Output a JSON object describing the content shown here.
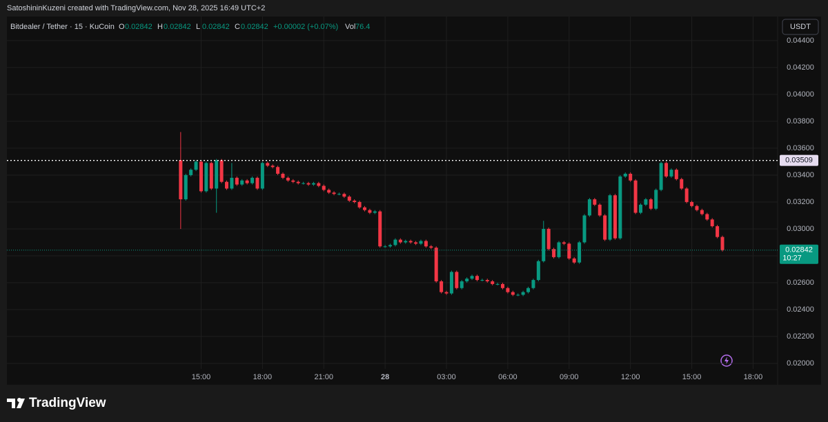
{
  "credit": "SatoshininKuzeni created with TradingView.com, Nov 28, 2025 16:49 UTC+2",
  "footer": {
    "brand": "TradingView"
  },
  "chart_data": {
    "type": "candlestick",
    "symbol": "Bitdealer / Tether · 15 · KuCoin",
    "ohlc_legend": [
      {
        "label": "O",
        "value": 0.02842
      },
      {
        "label": "H",
        "value": 0.02842
      },
      {
        "label": "L",
        "value": 0.02842
      },
      {
        "label": "C",
        "value": 0.02842
      }
    ],
    "change": "+0.00002 (+0.07%)",
    "volume": {
      "label": "Vol",
      "value": 76.4
    },
    "currency": "USDT",
    "up_color": "#089981",
    "down_color": "#f23645",
    "grid": true,
    "xlim": [
      5.5,
      43.2
    ],
    "xticks": [
      {
        "value": 15,
        "label": "15:00"
      },
      {
        "value": 18,
        "label": "18:00"
      },
      {
        "value": 21,
        "label": "21:00"
      },
      {
        "value": 24,
        "label": "28"
      },
      {
        "value": 27,
        "label": "03:00"
      },
      {
        "value": 30,
        "label": "06:00"
      },
      {
        "value": 33,
        "label": "09:00"
      },
      {
        "value": 36,
        "label": "12:00"
      },
      {
        "value": 39,
        "label": "15:00"
      },
      {
        "value": 42,
        "label": "18:00"
      }
    ],
    "ylim": [
      0.01841,
      0.04579
    ],
    "yticks": [
      {
        "value": 0.044,
        "label": "0.04400"
      },
      {
        "value": 0.042,
        "label": "0.04200"
      },
      {
        "value": 0.04,
        "label": "0.04000"
      },
      {
        "value": 0.038,
        "label": "0.03800"
      },
      {
        "value": 0.036,
        "label": "0.03600"
      },
      {
        "value": 0.034,
        "label": "0.03400"
      },
      {
        "value": 0.032,
        "label": "0.03200"
      },
      {
        "value": 0.03,
        "label": "0.03000"
      },
      {
        "value": 0.028,
        "label": "0.02800"
      },
      {
        "value": 0.026,
        "label": "0.02600"
      },
      {
        "value": 0.024,
        "label": "0.02400"
      },
      {
        "value": 0.022,
        "label": "0.02200"
      },
      {
        "value": 0.02,
        "label": "0.02000"
      }
    ],
    "high_line": {
      "value": 0.03509,
      "label": "0.03509"
    },
    "last_price": {
      "value": 0.02842,
      "label": "0.02842",
      "countdown": "10:27"
    },
    "x": [
      14,
      14.25,
      14.5,
      14.75,
      15,
      15.25,
      15.5,
      15.75,
      16,
      16.25,
      16.5,
      16.75,
      17,
      17.25,
      17.5,
      17.75,
      18,
      18.25,
      18.5,
      18.75,
      19,
      19.25,
      19.5,
      19.75,
      20,
      20.25,
      20.5,
      20.75,
      21,
      21.25,
      21.5,
      21.75,
      22,
      22.25,
      22.5,
      22.75,
      23,
      23.25,
      23.5,
      23.75,
      24,
      24.25,
      24.5,
      24.75,
      25,
      25.25,
      25.5,
      25.75,
      26,
      26.25,
      26.5,
      26.75,
      27,
      27.25,
      27.5,
      27.75,
      28,
      28.25,
      28.5,
      28.75,
      29,
      29.25,
      29.5,
      29.75,
      30,
      30.25,
      30.5,
      30.75,
      31,
      31.25,
      31.5,
      31.75,
      32,
      32.25,
      32.5,
      32.75,
      33,
      33.25,
      33.5,
      33.75,
      34,
      34.25,
      34.5,
      34.75,
      35,
      35.25,
      35.5,
      35.75,
      36,
      36.25,
      36.5,
      36.75,
      37,
      37.25,
      37.5,
      37.75,
      38,
      38.25,
      38.5,
      38.75,
      39,
      39.25,
      39.5,
      39.75,
      40,
      40.25,
      40.5
    ],
    "open": [
      0.0351,
      0.0322,
      0.034,
      0.0344,
      0.035,
      0.0328,
      0.0349,
      0.033,
      0.0351,
      0.0335,
      0.033,
      0.0338,
      0.0333,
      0.0336,
      0.0334,
      0.0338,
      0.033,
      0.0349,
      0.0347,
      0.0346,
      0.0341,
      0.0338,
      0.0336,
      0.0335,
      0.0334,
      0.0334,
      0.0333,
      0.0334,
      0.0332,
      0.0329,
      0.0327,
      0.0326,
      0.0326,
      0.0324,
      0.0321,
      0.032,
      0.0316,
      0.0314,
      0.0312,
      0.0313,
      0.0287,
      0.0287,
      0.0288,
      0.0292,
      0.029,
      0.0291,
      0.029,
      0.0289,
      0.0291,
      0.0287,
      0.0286,
      0.0261,
      0.0253,
      0.0252,
      0.0268,
      0.0256,
      0.0261,
      0.0263,
      0.0265,
      0.0262,
      0.0262,
      0.0261,
      0.0259,
      0.0259,
      0.0256,
      0.0253,
      0.0251,
      0.0251,
      0.0253,
      0.0256,
      0.0262,
      0.0276,
      0.03,
      0.0285,
      0.0279,
      0.029,
      0.0289,
      0.0278,
      0.0275,
      0.029,
      0.031,
      0.0322,
      0.0318,
      0.031,
      0.0292,
      0.0325,
      0.0293,
      0.0339,
      0.0341,
      0.0336,
      0.0312,
      0.0318,
      0.0322,
      0.0315,
      0.0329,
      0.0349,
      0.0339,
      0.0344,
      0.0337,
      0.033,
      0.032,
      0.0317,
      0.0314,
      0.0311,
      0.0307,
      0.0302,
      0.0294
    ],
    "high": [
      0.0372,
      0.0341,
      0.0345,
      0.0351,
      0.0351,
      0.035,
      0.035,
      0.0352,
      0.0352,
      0.0336,
      0.0349,
      0.0339,
      0.0337,
      0.0337,
      0.0339,
      0.0339,
      0.035,
      0.035,
      0.0348,
      0.0347,
      0.0342,
      0.0339,
      0.0337,
      0.0336,
      0.0335,
      0.0335,
      0.0335,
      0.0335,
      0.0333,
      0.033,
      0.0328,
      0.0327,
      0.0327,
      0.0325,
      0.0322,
      0.0321,
      0.0317,
      0.0315,
      0.0314,
      0.0314,
      0.0288,
      0.0289,
      0.0293,
      0.0293,
      0.0292,
      0.0292,
      0.0291,
      0.0292,
      0.0292,
      0.0288,
      0.0287,
      0.0262,
      0.0254,
      0.0269,
      0.0269,
      0.0262,
      0.0264,
      0.0266,
      0.0266,
      0.0263,
      0.0263,
      0.0262,
      0.026,
      0.026,
      0.0257,
      0.0254,
      0.0252,
      0.0254,
      0.0257,
      0.0263,
      0.0277,
      0.0306,
      0.0301,
      0.0286,
      0.0291,
      0.0291,
      0.029,
      0.0279,
      0.0291,
      0.0311,
      0.0323,
      0.0323,
      0.0319,
      0.0311,
      0.0326,
      0.0326,
      0.034,
      0.0342,
      0.0342,
      0.0337,
      0.0319,
      0.0323,
      0.0323,
      0.033,
      0.035,
      0.035,
      0.0345,
      0.0345,
      0.0338,
      0.0331,
      0.0321,
      0.0318,
      0.0315,
      0.0312,
      0.0308,
      0.0303,
      0.0295
    ],
    "low": [
      0.03,
      0.0321,
      0.0339,
      0.0343,
      0.0327,
      0.0327,
      0.0329,
      0.0312,
      0.0334,
      0.0329,
      0.0329,
      0.0332,
      0.0332,
      0.0333,
      0.0333,
      0.0329,
      0.0329,
      0.0346,
      0.0345,
      0.034,
      0.0337,
      0.0335,
      0.0334,
      0.0333,
      0.0333,
      0.0332,
      0.0332,
      0.0331,
      0.0328,
      0.0326,
      0.0325,
      0.0325,
      0.0323,
      0.032,
      0.0319,
      0.0315,
      0.0313,
      0.0311,
      0.0311,
      0.0286,
      0.0286,
      0.0286,
      0.0287,
      0.0289,
      0.0289,
      0.0289,
      0.0288,
      0.0288,
      0.0286,
      0.0285,
      0.026,
      0.0252,
      0.0251,
      0.0251,
      0.0255,
      0.0255,
      0.026,
      0.0262,
      0.0261,
      0.0261,
      0.026,
      0.0258,
      0.0258,
      0.0255,
      0.0252,
      0.025,
      0.025,
      0.025,
      0.0252,
      0.0255,
      0.0261,
      0.0275,
      0.0284,
      0.0278,
      0.0278,
      0.0288,
      0.0277,
      0.0274,
      0.0274,
      0.0289,
      0.0309,
      0.0317,
      0.0309,
      0.0291,
      0.0291,
      0.0292,
      0.0292,
      0.0338,
      0.0335,
      0.0311,
      0.0311,
      0.0317,
      0.0314,
      0.0314,
      0.0328,
      0.0338,
      0.0338,
      0.0336,
      0.0329,
      0.0319,
      0.0316,
      0.0313,
      0.031,
      0.0306,
      0.0301,
      0.0293,
      0.02832
    ],
    "close": [
      0.0322,
      0.034,
      0.0344,
      0.035,
      0.0328,
      0.0349,
      0.033,
      0.0351,
      0.0335,
      0.033,
      0.0338,
      0.0333,
      0.0336,
      0.0334,
      0.0338,
      0.033,
      0.0349,
      0.0347,
      0.0346,
      0.0341,
      0.0338,
      0.0336,
      0.0335,
      0.0334,
      0.0334,
      0.0333,
      0.0334,
      0.0332,
      0.0329,
      0.0327,
      0.0326,
      0.0326,
      0.0324,
      0.0321,
      0.032,
      0.0316,
      0.0314,
      0.0312,
      0.0313,
      0.0287,
      0.0287,
      0.0288,
      0.0292,
      0.029,
      0.0291,
      0.029,
      0.0289,
      0.0291,
      0.0287,
      0.0286,
      0.0261,
      0.0253,
      0.0252,
      0.0268,
      0.0256,
      0.0261,
      0.0263,
      0.0265,
      0.0262,
      0.0262,
      0.0261,
      0.0259,
      0.0259,
      0.0256,
      0.0253,
      0.0251,
      0.0251,
      0.0253,
      0.0256,
      0.0262,
      0.0276,
      0.03,
      0.0285,
      0.0279,
      0.029,
      0.0289,
      0.0278,
      0.0275,
      0.029,
      0.031,
      0.0322,
      0.0318,
      0.031,
      0.0292,
      0.0325,
      0.0293,
      0.0339,
      0.0341,
      0.0336,
      0.0312,
      0.0318,
      0.0322,
      0.0315,
      0.0329,
      0.0349,
      0.0339,
      0.0344,
      0.0337,
      0.033,
      0.032,
      0.0317,
      0.0314,
      0.0311,
      0.0307,
      0.0302,
      0.0294,
      0.02842
    ]
  }
}
